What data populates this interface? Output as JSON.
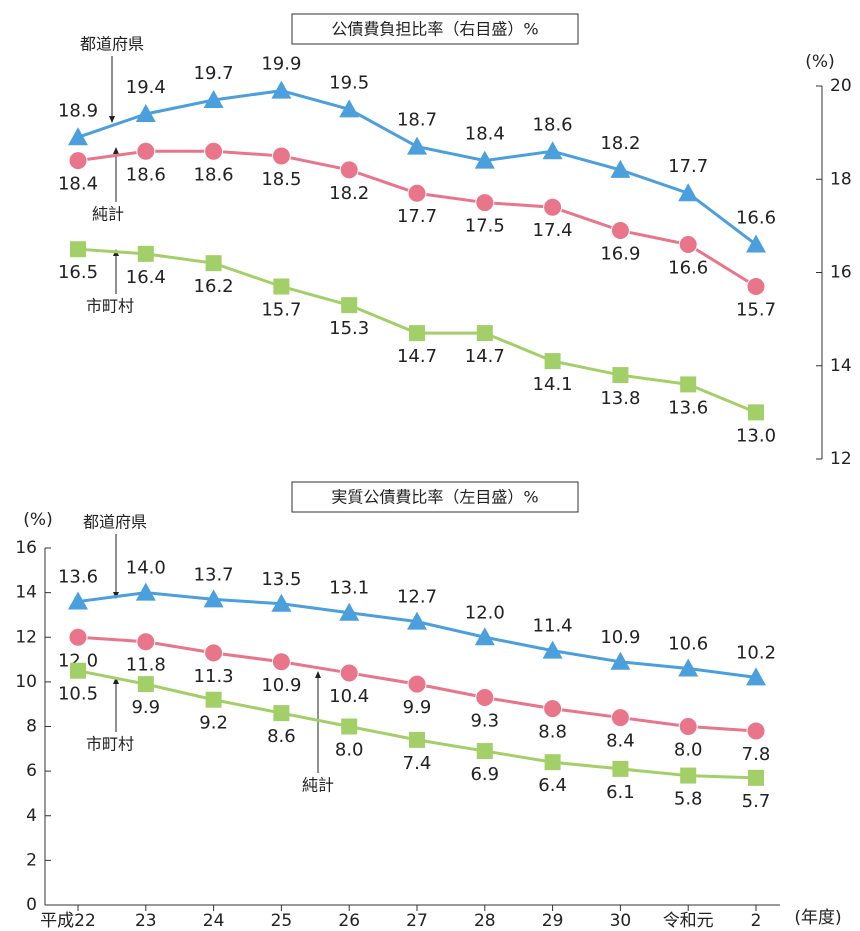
{
  "chart_data": [
    {
      "type": "line",
      "title": "公債費負担比率（右目盛）%",
      "y_label": "(%)",
      "y_axis_position": "right",
      "ylim": [
        12,
        20
      ],
      "yticks": [
        12,
        14,
        16,
        18,
        20
      ],
      "series": [
        {
          "name": "都道府県",
          "color": "#4a9fdc",
          "marker": "triangle",
          "values": [
            18.9,
            19.4,
            19.7,
            19.9,
            19.5,
            18.7,
            18.4,
            18.6,
            18.2,
            17.7,
            16.6
          ],
          "value_labels": [
            "18.9",
            "19.4",
            "19.7",
            "19.9",
            "19.5",
            "18.7",
            "18.4",
            "18.6",
            "18.2",
            "17.7",
            "16.6"
          ]
        },
        {
          "name": "純計",
          "color": "#e8758a",
          "marker": "circle",
          "values": [
            18.4,
            18.6,
            18.6,
            18.5,
            18.2,
            17.7,
            17.5,
            17.4,
            16.9,
            16.6,
            15.7
          ],
          "value_labels": [
            "18.4",
            "18.6",
            "18.6",
            "18.5",
            "18.2",
            "17.7",
            "17.5",
            "17.4",
            "16.9",
            "16.6",
            "15.7"
          ]
        },
        {
          "name": "市町村",
          "color": "#a3cf68",
          "marker": "square",
          "values": [
            16.5,
            16.4,
            16.2,
            15.7,
            15.3,
            14.7,
            14.7,
            14.1,
            13.8,
            13.6,
            13.0
          ],
          "value_labels": [
            "16.5",
            "16.4",
            "16.2",
            "15.7",
            "15.3",
            "14.7",
            "14.7",
            "14.1",
            "13.8",
            "13.6",
            "13.0"
          ]
        }
      ]
    },
    {
      "type": "line",
      "title": "実質公債費比率（左目盛）%",
      "y_label": "(%)",
      "x_label": "(年度)",
      "y_axis_position": "left",
      "categories": [
        "平成22",
        "23",
        "24",
        "25",
        "26",
        "27",
        "28",
        "29",
        "30",
        "令和元",
        "2"
      ],
      "ylim": [
        0,
        16
      ],
      "yticks": [
        0,
        2,
        4,
        6,
        8,
        10,
        12,
        14,
        16
      ],
      "series": [
        {
          "name": "都道府県",
          "color": "#4a9fdc",
          "marker": "triangle",
          "values": [
            13.6,
            14.0,
            13.7,
            13.5,
            13.1,
            12.7,
            12.0,
            11.4,
            10.9,
            10.6,
            10.2
          ],
          "value_labels": [
            "13.6",
            "14.0",
            "13.7",
            "13.5",
            "13.1",
            "12.7",
            "12.0",
            "11.4",
            "10.9",
            "10.6",
            "10.2"
          ]
        },
        {
          "name": "純計",
          "color": "#e8758a",
          "marker": "circle",
          "values": [
            12.0,
            11.8,
            11.3,
            10.9,
            10.4,
            9.9,
            9.3,
            8.8,
            8.4,
            8.0,
            7.8
          ],
          "value_labels": [
            "12.0",
            "11.8",
            "11.3",
            "10.9",
            "10.4",
            "9.9",
            "9.3",
            "8.8",
            "8.4",
            "8.0",
            "7.8"
          ]
        },
        {
          "name": "市町村",
          "color": "#a3cf68",
          "marker": "square",
          "values": [
            10.5,
            9.9,
            9.2,
            8.6,
            8.0,
            7.4,
            6.9,
            6.4,
            6.1,
            5.8,
            5.7
          ],
          "value_labels": [
            "10.5",
            "9.9",
            "9.2",
            "8.6",
            "8.0",
            "7.4",
            "6.9",
            "6.4",
            "6.1",
            "5.8",
            "5.7"
          ]
        }
      ]
    }
  ]
}
